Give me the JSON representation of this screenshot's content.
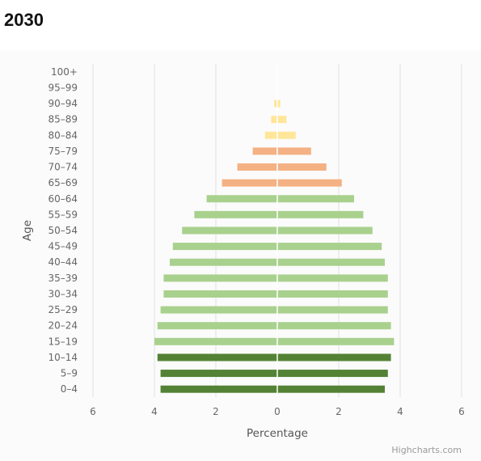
{
  "page": {
    "title": "2030"
  },
  "colors": {
    "young": "#548235",
    "working": "#a9d18e",
    "senior": "#f4b183",
    "elderly": "#ffe699",
    "grid": "#e0e0e0",
    "center_line": "#ffffff"
  },
  "chart_data": {
    "type": "bar",
    "orientation": "horizontal-population-pyramid",
    "xlabel": "Percentage",
    "ylabel": "Age",
    "xlim": [
      -6,
      6
    ],
    "x_ticks": [
      -6,
      -4,
      -2,
      0,
      2,
      4,
      6
    ],
    "x_tick_labels": [
      "6",
      "4",
      "2",
      "0",
      "2",
      "4",
      "6"
    ],
    "grid": true,
    "legend": "none",
    "credits": "Highcharts.com",
    "categories": [
      "0–4",
      "5–9",
      "10–14",
      "15–19",
      "20–24",
      "25–29",
      "30–34",
      "35–39",
      "40–44",
      "45–49",
      "50–54",
      "55–59",
      "60–64",
      "65–69",
      "70–74",
      "75–79",
      "80–84",
      "85–89",
      "90–94",
      "95–99",
      "100+"
    ],
    "color_groups": [
      "young",
      "young",
      "young",
      "working",
      "working",
      "working",
      "working",
      "working",
      "working",
      "working",
      "working",
      "working",
      "working",
      "senior",
      "senior",
      "senior",
      "elderly",
      "elderly",
      "elderly",
      "elderly",
      "elderly"
    ],
    "series": [
      {
        "side": "left",
        "values": [
          3.8,
          3.8,
          3.9,
          4.0,
          3.9,
          3.8,
          3.7,
          3.7,
          3.5,
          3.4,
          3.1,
          2.7,
          2.3,
          1.8,
          1.3,
          0.8,
          0.4,
          0.2,
          0.1,
          0.0,
          0.0
        ]
      },
      {
        "side": "right",
        "values": [
          3.5,
          3.6,
          3.7,
          3.8,
          3.7,
          3.6,
          3.6,
          3.6,
          3.5,
          3.4,
          3.1,
          2.8,
          2.5,
          2.1,
          1.6,
          1.1,
          0.6,
          0.3,
          0.1,
          0.0,
          0.0
        ]
      }
    ]
  }
}
